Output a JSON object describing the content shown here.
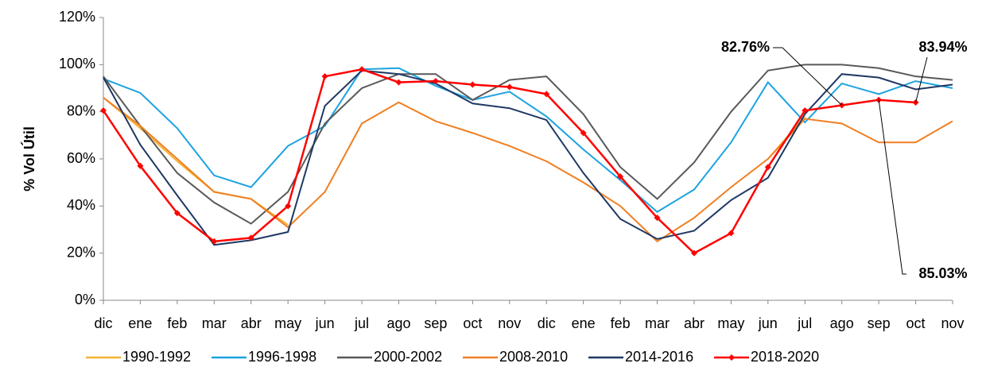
{
  "chart_data": {
    "type": "line",
    "y_label": "% Vol Útil",
    "categories": [
      "dic",
      "ene",
      "feb",
      "mar",
      "abr",
      "may",
      "jun",
      "jul",
      "ago",
      "sep",
      "oct",
      "nov",
      "dic",
      "ene",
      "feb",
      "mar",
      "abr",
      "may",
      "jun",
      "jul",
      "ago",
      "sep",
      "oct",
      "nov"
    ],
    "ylim": [
      0,
      120
    ],
    "yticks": [
      {
        "value": 0,
        "label": "0%"
      },
      {
        "value": 20,
        "label": "20%"
      },
      {
        "value": 40,
        "label": "40%"
      },
      {
        "value": 60,
        "label": "60%"
      },
      {
        "value": 80,
        "label": "80%"
      },
      {
        "value": 100,
        "label": "100%"
      },
      {
        "value": 120,
        "label": "120%"
      }
    ],
    "grid": false,
    "legend": "bottom",
    "series": [
      {
        "name": "1990-1992",
        "color": "#f5b335",
        "values": [
          86,
          73,
          59,
          46,
          43,
          32,
          null,
          null,
          null,
          null,
          null,
          null,
          null,
          null,
          null,
          null,
          null,
          null,
          60,
          78,
          null,
          null,
          null,
          null
        ]
      },
      {
        "name": "1996-1998",
        "color": "#1ca3e0",
        "values": [
          94,
          88,
          73,
          53,
          48,
          65.5,
          74,
          98,
          98.5,
          91,
          85,
          88.5,
          78,
          64,
          51,
          37.5,
          47,
          67,
          92.5,
          75.5,
          92,
          87.5,
          93,
          90
        ]
      },
      {
        "name": "2000-2002",
        "color": "#595959",
        "values": [
          95,
          74,
          54,
          41.5,
          32.5,
          46,
          75,
          90,
          96,
          96,
          85,
          93.5,
          95,
          79,
          56.5,
          43,
          58.5,
          80,
          97.5,
          100,
          100,
          98.5,
          95,
          93.5
        ]
      },
      {
        "name": "2008-2010",
        "color": "#f07f22",
        "values": [
          86,
          74,
          60,
          46,
          43,
          31,
          46,
          75,
          84,
          76,
          71,
          65.5,
          59,
          50,
          40,
          25,
          35,
          48,
          60,
          77,
          75,
          67,
          67,
          76
        ]
      },
      {
        "name": "2014-2016",
        "color": "#1f3864",
        "values": [
          94.5,
          66,
          44.5,
          23.5,
          25.5,
          29,
          82.5,
          97.5,
          96,
          92,
          83.5,
          81.5,
          76.5,
          54,
          34.5,
          26,
          29.5,
          42.5,
          52,
          79,
          96,
          94.5,
          89.5,
          91.5
        ]
      },
      {
        "name": "2018-2020",
        "color": "#ff0000",
        "marker": "diamond",
        "values": [
          80.5,
          57,
          37,
          25,
          26.5,
          40,
          95,
          98,
          92.5,
          93,
          91.5,
          90.5,
          87.5,
          71,
          52.5,
          35,
          20,
          28.5,
          56.5,
          80.5,
          82.76,
          85.03,
          83.94,
          null
        ]
      }
    ],
    "annotations": [
      {
        "text": "82.76%",
        "series": 5,
        "index": 20
      },
      {
        "text": "83.94%",
        "series": 5,
        "index": 22
      },
      {
        "text": "85.03%",
        "series": 5,
        "index": 21
      }
    ]
  }
}
